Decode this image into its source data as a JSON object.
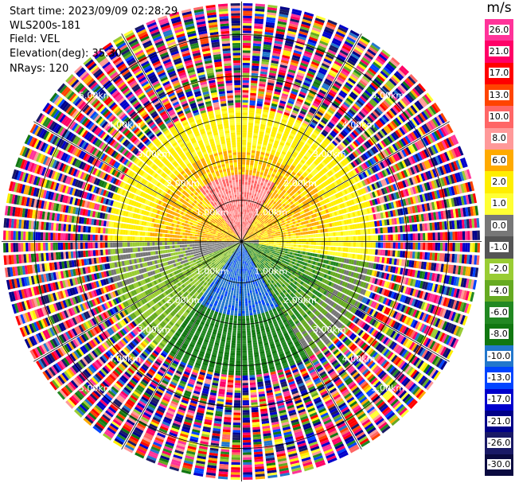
{
  "info": {
    "start_time": "Start time: 2023/09/09 02:28:29",
    "instrument": "WLS200s-181",
    "field": "Field: VEL",
    "elevation": "Elevation(deg): 35.30",
    "nrays": "NRays: 120"
  },
  "chart_data": {
    "type": "heatmap",
    "projection": "polar PPI",
    "unit": "m/s",
    "range_ring_labels": [
      "1.00km",
      "2.00km",
      "3.00km",
      "4.00km",
      "5.00km"
    ],
    "range_rings_km": [
      1,
      2,
      3,
      4,
      5
    ],
    "max_range_km": 5.8,
    "n_rays": 120,
    "colorbar": {
      "ticks": [
        "26.0",
        "21.0",
        "17.0",
        "13.0",
        "10.0",
        "8.0",
        "6.0",
        "2.0",
        "1.0",
        "0.0",
        "-1.0",
        "-2.0",
        "-4.0",
        "-6.0",
        "-8.0",
        "-10.0",
        "-13.0",
        "-17.0",
        "-21.0",
        "-26.0",
        "-30.0"
      ],
      "colors": [
        "#ff3399",
        "#ff0066",
        "#ff0000",
        "#ff4400",
        "#ff6666",
        "#ff9999",
        "#ffaa00",
        "#ffee00",
        "#ffff33",
        "#777777",
        "#555555",
        "#99cc33",
        "#66aa22",
        "#228822",
        "#117711",
        "#2277cc",
        "#0044ff",
        "#0000cc",
        "#000088",
        "#1a1a66",
        "#0a0a40"
      ]
    },
    "color_scale": [
      "#1a1a66",
      "#000088",
      "#0000cc",
      "#0044ff",
      "#2277cc",
      "#117711",
      "#228822",
      "#66aa22",
      "#99cc33",
      "#777777",
      "#ffff33",
      "#ffee00",
      "#ffaa00",
      "#ff9999",
      "#ff6666",
      "#ff4400",
      "#ff0000",
      "#ff0066",
      "#ff3399"
    ]
  }
}
